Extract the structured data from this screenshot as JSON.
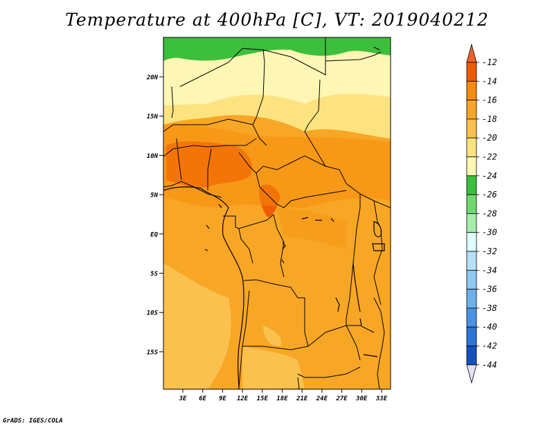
{
  "title": "Temperature at 400hPa [C], VT: 2019040212",
  "credit": "GrADS: IGES/COLA",
  "map": {
    "lat_labels": [
      "20N",
      "15N",
      "10N",
      "5N",
      "EQ",
      "5S",
      "10S",
      "15S"
    ],
    "lon_labels": [
      "3E",
      "6E",
      "9E",
      "12E",
      "15E",
      "18E",
      "21E",
      "24E",
      "27E",
      "30E",
      "33E"
    ]
  },
  "colorbar": {
    "labels": [
      "-12",
      "-14",
      "-16",
      "-18",
      "-20",
      "-22",
      "-24",
      "-26",
      "-28",
      "-30",
      "-32",
      "-34",
      "-36",
      "-38",
      "-40",
      "-42",
      "-44"
    ],
    "colors": [
      "#f05a00",
      "#f58c0c",
      "#f8a625",
      "#fbc14e",
      "#fde280",
      "#fdf6b4",
      "#3cbf3c",
      "#6fd86f",
      "#a6ecaa",
      "#e0ffff",
      "#b4e0fa",
      "#90c8f0",
      "#6eb0ea",
      "#4c92e2",
      "#2c74d6",
      "#1450be",
      "#0c1e78"
    ],
    "top_color": "#f06428",
    "bottom_color": "#e0e0f6"
  }
}
